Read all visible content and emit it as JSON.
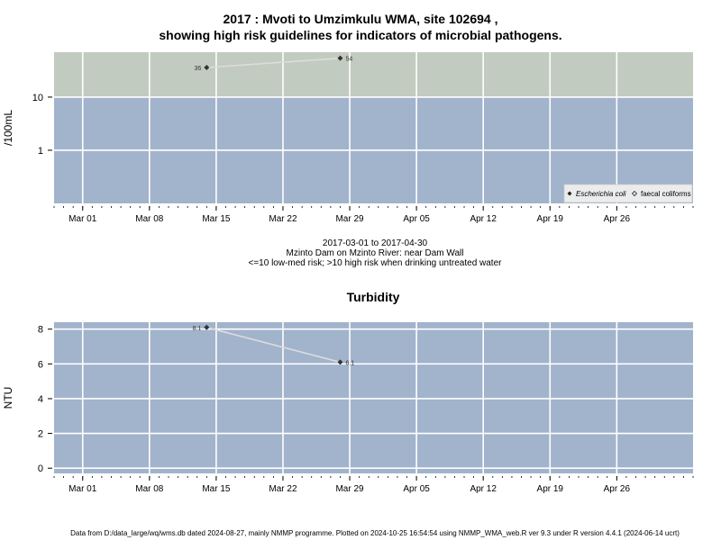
{
  "page": {
    "title_line1": "2017 : Mvoti to Umzimkulu WMA, site 102694 ,",
    "title_line2": "showing high risk guidelines for indicators of microbial pathogens.",
    "caption_line1": "2017-03-01 to 2017-04-30",
    "caption_line2": "Mzinto Dam on Mzinto River: near Dam Wall",
    "caption_line3": "<=10 low-med risk; >10 high risk when drinking untreated water",
    "footer": "Data from D:/data_large/wq/wms.db dated 2024-08-27, mainly NMMP programme. Plotted on 2024-10-25 16:54:54 using NMMP_WMA_web.R ver 9.3 under R version 4.4.1 (2024-06-14 ucrt)",
    "colors": {
      "low_band": "#a2b3cc",
      "high_band": "#c2cbbf",
      "grid": "#ffffff",
      "line": "#dcdcdc",
      "point": "#333333"
    }
  },
  "chart_data": [
    {
      "type": "line",
      "title": "",
      "ylabel": "/100mL",
      "xlabel": "",
      "y_scale": "log",
      "ylim": [
        0.1,
        70
      ],
      "xlim": [
        "2017-02-26",
        "2017-05-04"
      ],
      "x_ticks": [
        "2017-03-01",
        "2017-03-08",
        "2017-03-15",
        "2017-03-22",
        "2017-03-29",
        "2017-04-05",
        "2017-04-12",
        "2017-04-19",
        "2017-04-26"
      ],
      "x_tick_labels": [
        "Mar 01",
        "Mar 08",
        "Mar 15",
        "Mar 22",
        "Mar 29",
        "Apr 05",
        "Apr 12",
        "Apr 19",
        "Apr 26"
      ],
      "y_ticks": [
        1,
        10
      ],
      "y_tick_labels": [
        "1",
        "10"
      ],
      "threshold": 10,
      "grid": true,
      "legend_position": "bottom-right",
      "legend": [
        {
          "label": "Escherichia coli",
          "marker": "diamond",
          "italic": true
        },
        {
          "label": "faecal coliforms",
          "marker": "open-diamond",
          "italic": false
        }
      ],
      "series": [
        {
          "name": "Escherichia coli",
          "x": [
            "2017-03-14",
            "2017-03-28"
          ],
          "y": [
            36,
            54
          ],
          "labels": [
            "36",
            "54"
          ]
        }
      ]
    },
    {
      "type": "line",
      "title": "Turbidity",
      "ylabel": "NTU",
      "xlabel": "",
      "y_scale": "linear",
      "ylim": [
        -0.3,
        8.4
      ],
      "xlim": [
        "2017-02-26",
        "2017-05-04"
      ],
      "x_ticks": [
        "2017-03-01",
        "2017-03-08",
        "2017-03-15",
        "2017-03-22",
        "2017-03-29",
        "2017-04-05",
        "2017-04-12",
        "2017-04-19",
        "2017-04-26"
      ],
      "x_tick_labels": [
        "Mar 01",
        "Mar 08",
        "Mar 15",
        "Mar 22",
        "Mar 29",
        "Apr 05",
        "Apr 12",
        "Apr 19",
        "Apr 26"
      ],
      "y_ticks": [
        0,
        2,
        4,
        6,
        8
      ],
      "y_tick_labels": [
        "0",
        "2",
        "4",
        "6",
        "8"
      ],
      "grid": true,
      "series": [
        {
          "x": [
            "2017-03-14",
            "2017-03-28"
          ],
          "y": [
            8.1,
            6.1
          ],
          "labels": [
            "8.1",
            "6.1"
          ]
        }
      ]
    }
  ]
}
